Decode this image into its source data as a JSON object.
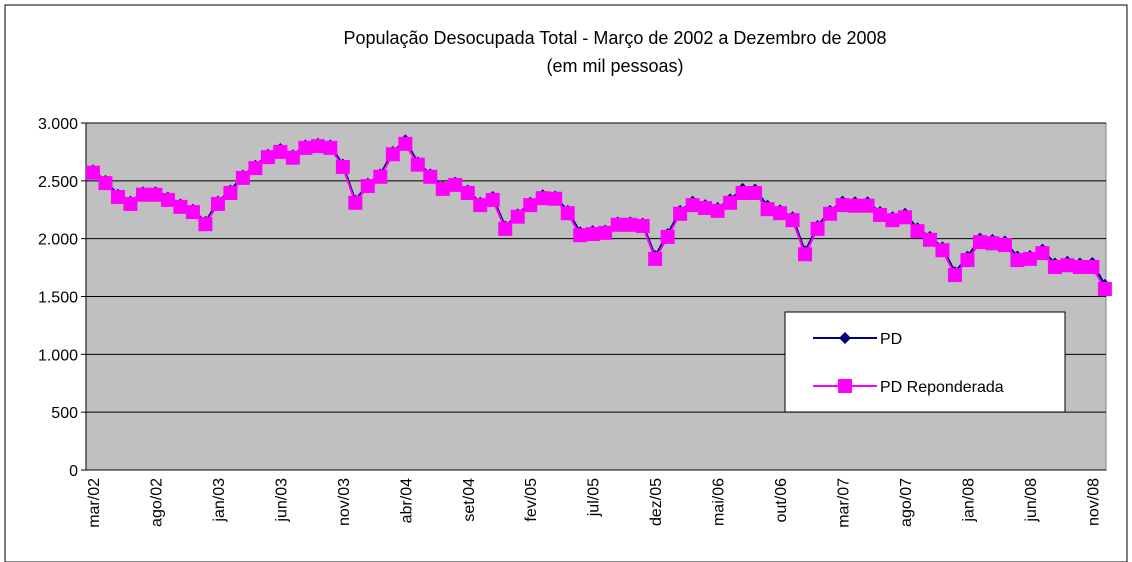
{
  "chart_data": {
    "type": "line",
    "title": "População Desocupada Total  - Março de 2002 a Dezembro de 2008",
    "subtitle": "(em mil pessoas)",
    "categories": [
      "mar/02",
      null,
      null,
      null,
      null,
      "ago/02",
      null,
      null,
      null,
      null,
      "jan/03",
      null,
      null,
      null,
      null,
      "jun/03",
      null,
      null,
      null,
      null,
      "nov/03",
      null,
      null,
      null,
      null,
      "abr/04",
      null,
      null,
      null,
      null,
      "set/04",
      null,
      null,
      null,
      null,
      "fev/05",
      null,
      null,
      null,
      null,
      "jul/05",
      null,
      null,
      null,
      null,
      "dez/05",
      null,
      null,
      null,
      null,
      "mai/06",
      null,
      null,
      null,
      null,
      "out/06",
      null,
      null,
      null,
      null,
      "mar/07",
      null,
      null,
      null,
      null,
      "ago/07",
      null,
      null,
      null,
      null,
      "jan/08",
      null,
      null,
      null,
      null,
      "jun/08",
      null,
      null,
      null,
      null,
      "nov/08",
      null
    ],
    "series": [
      {
        "name": "PD",
        "color": "#000080",
        "marker": "diamond",
        "values": [
          2590,
          2500,
          2380,
          2320,
          2400,
          2400,
          2355,
          2295,
          2250,
          2145,
          2320,
          2415,
          2545,
          2630,
          2725,
          2775,
          2720,
          2805,
          2820,
          2805,
          2640,
          2330,
          2475,
          2555,
          2750,
          2850,
          2660,
          2555,
          2450,
          2485,
          2415,
          2310,
          2360,
          2105,
          2210,
          2310,
          2375,
          2365,
          2240,
          2055,
          2065,
          2070,
          2140,
          2140,
          2130,
          1850,
          2040,
          2240,
          2320,
          2290,
          2265,
          2340,
          2430,
          2425,
          2285,
          2245,
          2185,
          1890,
          2110,
          2240,
          2320,
          2315,
          2315,
          2230,
          2185,
          2215,
          2090,
          2015,
          1925,
          1710,
          1845,
          2000,
          1990,
          1975,
          1845,
          1850,
          1905,
          1785,
          1800,
          1785,
          1790,
          1600
        ]
      },
      {
        "name": "PD Reponderada",
        "color": "#FF00FF",
        "marker": "square",
        "values": [
          2570,
          2480,
          2360,
          2300,
          2380,
          2380,
          2335,
          2275,
          2230,
          2125,
          2300,
          2395,
          2525,
          2610,
          2705,
          2750,
          2700,
          2785,
          2800,
          2785,
          2620,
          2310,
          2455,
          2535,
          2730,
          2820,
          2640,
          2535,
          2430,
          2465,
          2395,
          2290,
          2335,
          2085,
          2190,
          2290,
          2350,
          2345,
          2220,
          2030,
          2040,
          2050,
          2120,
          2120,
          2110,
          1825,
          2015,
          2215,
          2290,
          2265,
          2240,
          2310,
          2395,
          2395,
          2255,
          2220,
          2160,
          1865,
          2085,
          2215,
          2290,
          2285,
          2285,
          2205,
          2160,
          2185,
          2065,
          1990,
          1900,
          1685,
          1815,
          1970,
          1960,
          1945,
          1815,
          1825,
          1875,
          1755,
          1770,
          1755,
          1755,
          1565
        ]
      }
    ],
    "ylim": [
      0,
      3000
    ],
    "yticks": [
      0,
      500,
      {
        "value": 1000,
        "label": "1.000"
      },
      {
        "value": 1500,
        "label": "1.500"
      },
      {
        "value": 2000,
        "label": "2.000"
      },
      {
        "value": 2500,
        "label": "2.500"
      },
      {
        "value": 3000,
        "label": "3.000"
      }
    ],
    "grid": true,
    "plot_background": "#C0C0C0",
    "legend_position": "right"
  }
}
